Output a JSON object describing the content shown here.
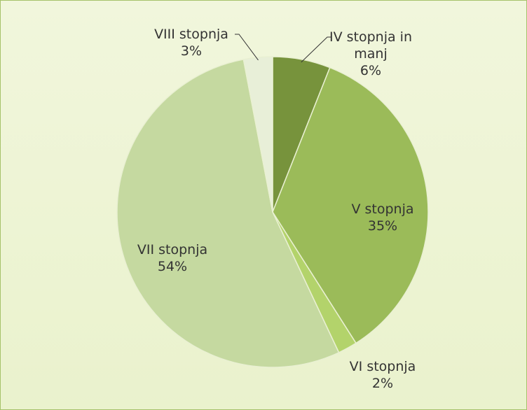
{
  "chart_data": {
    "type": "pie",
    "categories": [
      "IV stopnja in manj",
      "V stopnja",
      "VI stopnja",
      "VII stopnja",
      "VIII stopnja"
    ],
    "values": [
      6,
      35,
      2,
      54,
      3
    ],
    "value_labels": [
      "6%",
      "35%",
      "2%",
      "54%",
      "3%"
    ],
    "colors": [
      "#77933c",
      "#9bbb59",
      "#b3d36b",
      "#c5d9a0",
      "#e8efd8"
    ]
  }
}
